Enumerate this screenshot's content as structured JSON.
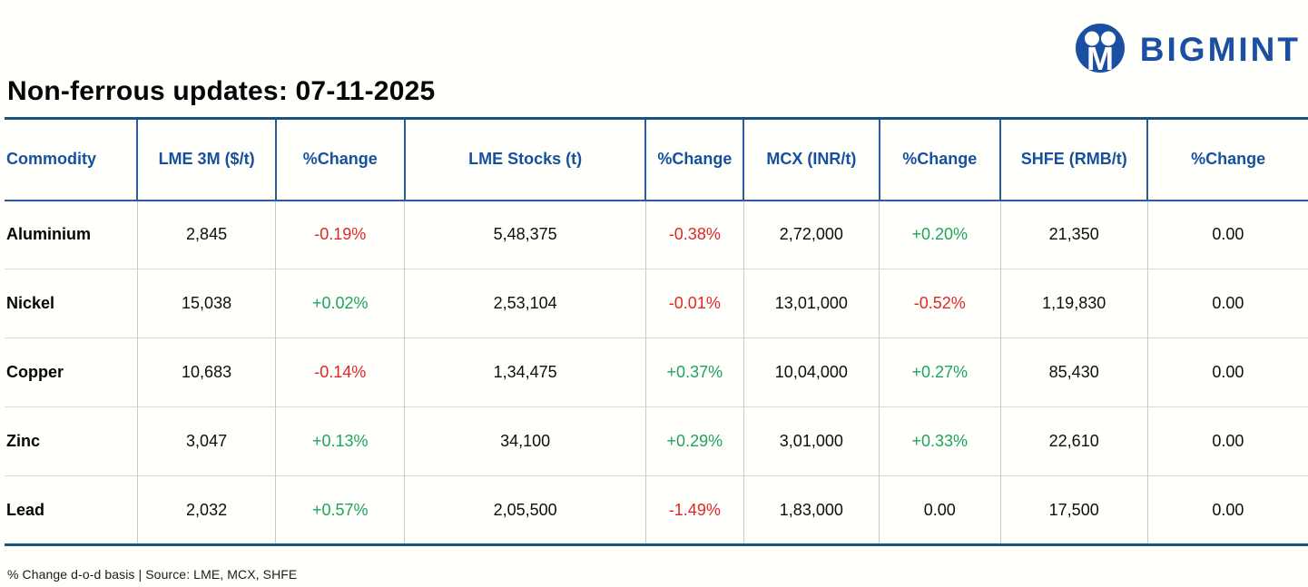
{
  "brand": {
    "name": "BIGMINT",
    "logo_icon": "bigmint-logo",
    "color": "#1b4fa3"
  },
  "page_title": "Non-ferrous updates: 07-11-2025",
  "footnote": "% Change d-o-d basis | Source: LME, MCX, SHFE",
  "colors": {
    "header_text_blue": "#17509e",
    "positive_green": "#1fa45c",
    "negative_red": "#e22626",
    "table_rule_blue": "#2a5d9d",
    "table_edge_dark_blue": "#1b537f"
  },
  "chart_data": {
    "type": "table",
    "title": "Non-ferrous updates: 07-11-2025",
    "columns": [
      "Commodity",
      "LME 3M ($/t)",
      "%Change",
      "LME Stocks (t)",
      "%Change",
      "MCX (INR/t)",
      "%Change",
      "SHFE (RMB/t)",
      "%Change"
    ],
    "change_column_indexes": [
      2,
      4,
      6,
      8
    ],
    "rows": [
      [
        "Aluminium",
        "2,845",
        "-0.19%",
        "5,48,375",
        "-0.38%",
        "2,72,000",
        "+0.20%",
        "21,350",
        "0.00"
      ],
      [
        "Nickel",
        "15,038",
        "+0.02%",
        "2,53,104",
        "-0.01%",
        "13,01,000",
        "-0.52%",
        "1,19,830",
        "0.00"
      ],
      [
        "Copper",
        "10,683",
        "-0.14%",
        "1,34,475",
        "+0.37%",
        "10,04,000",
        "+0.27%",
        "85,430",
        "0.00"
      ],
      [
        "Zinc",
        "3,047",
        "+0.13%",
        "34,100",
        "+0.29%",
        "3,01,000",
        "+0.33%",
        "22,610",
        "0.00"
      ],
      [
        "Lead",
        "2,032",
        "+0.57%",
        "2,05,500",
        "-1.49%",
        "1,83,000",
        "0.00",
        "17,500",
        "0.00"
      ]
    ],
    "footnote": "% Change d-o-d basis | Source: LME, MCX, SHFE"
  }
}
